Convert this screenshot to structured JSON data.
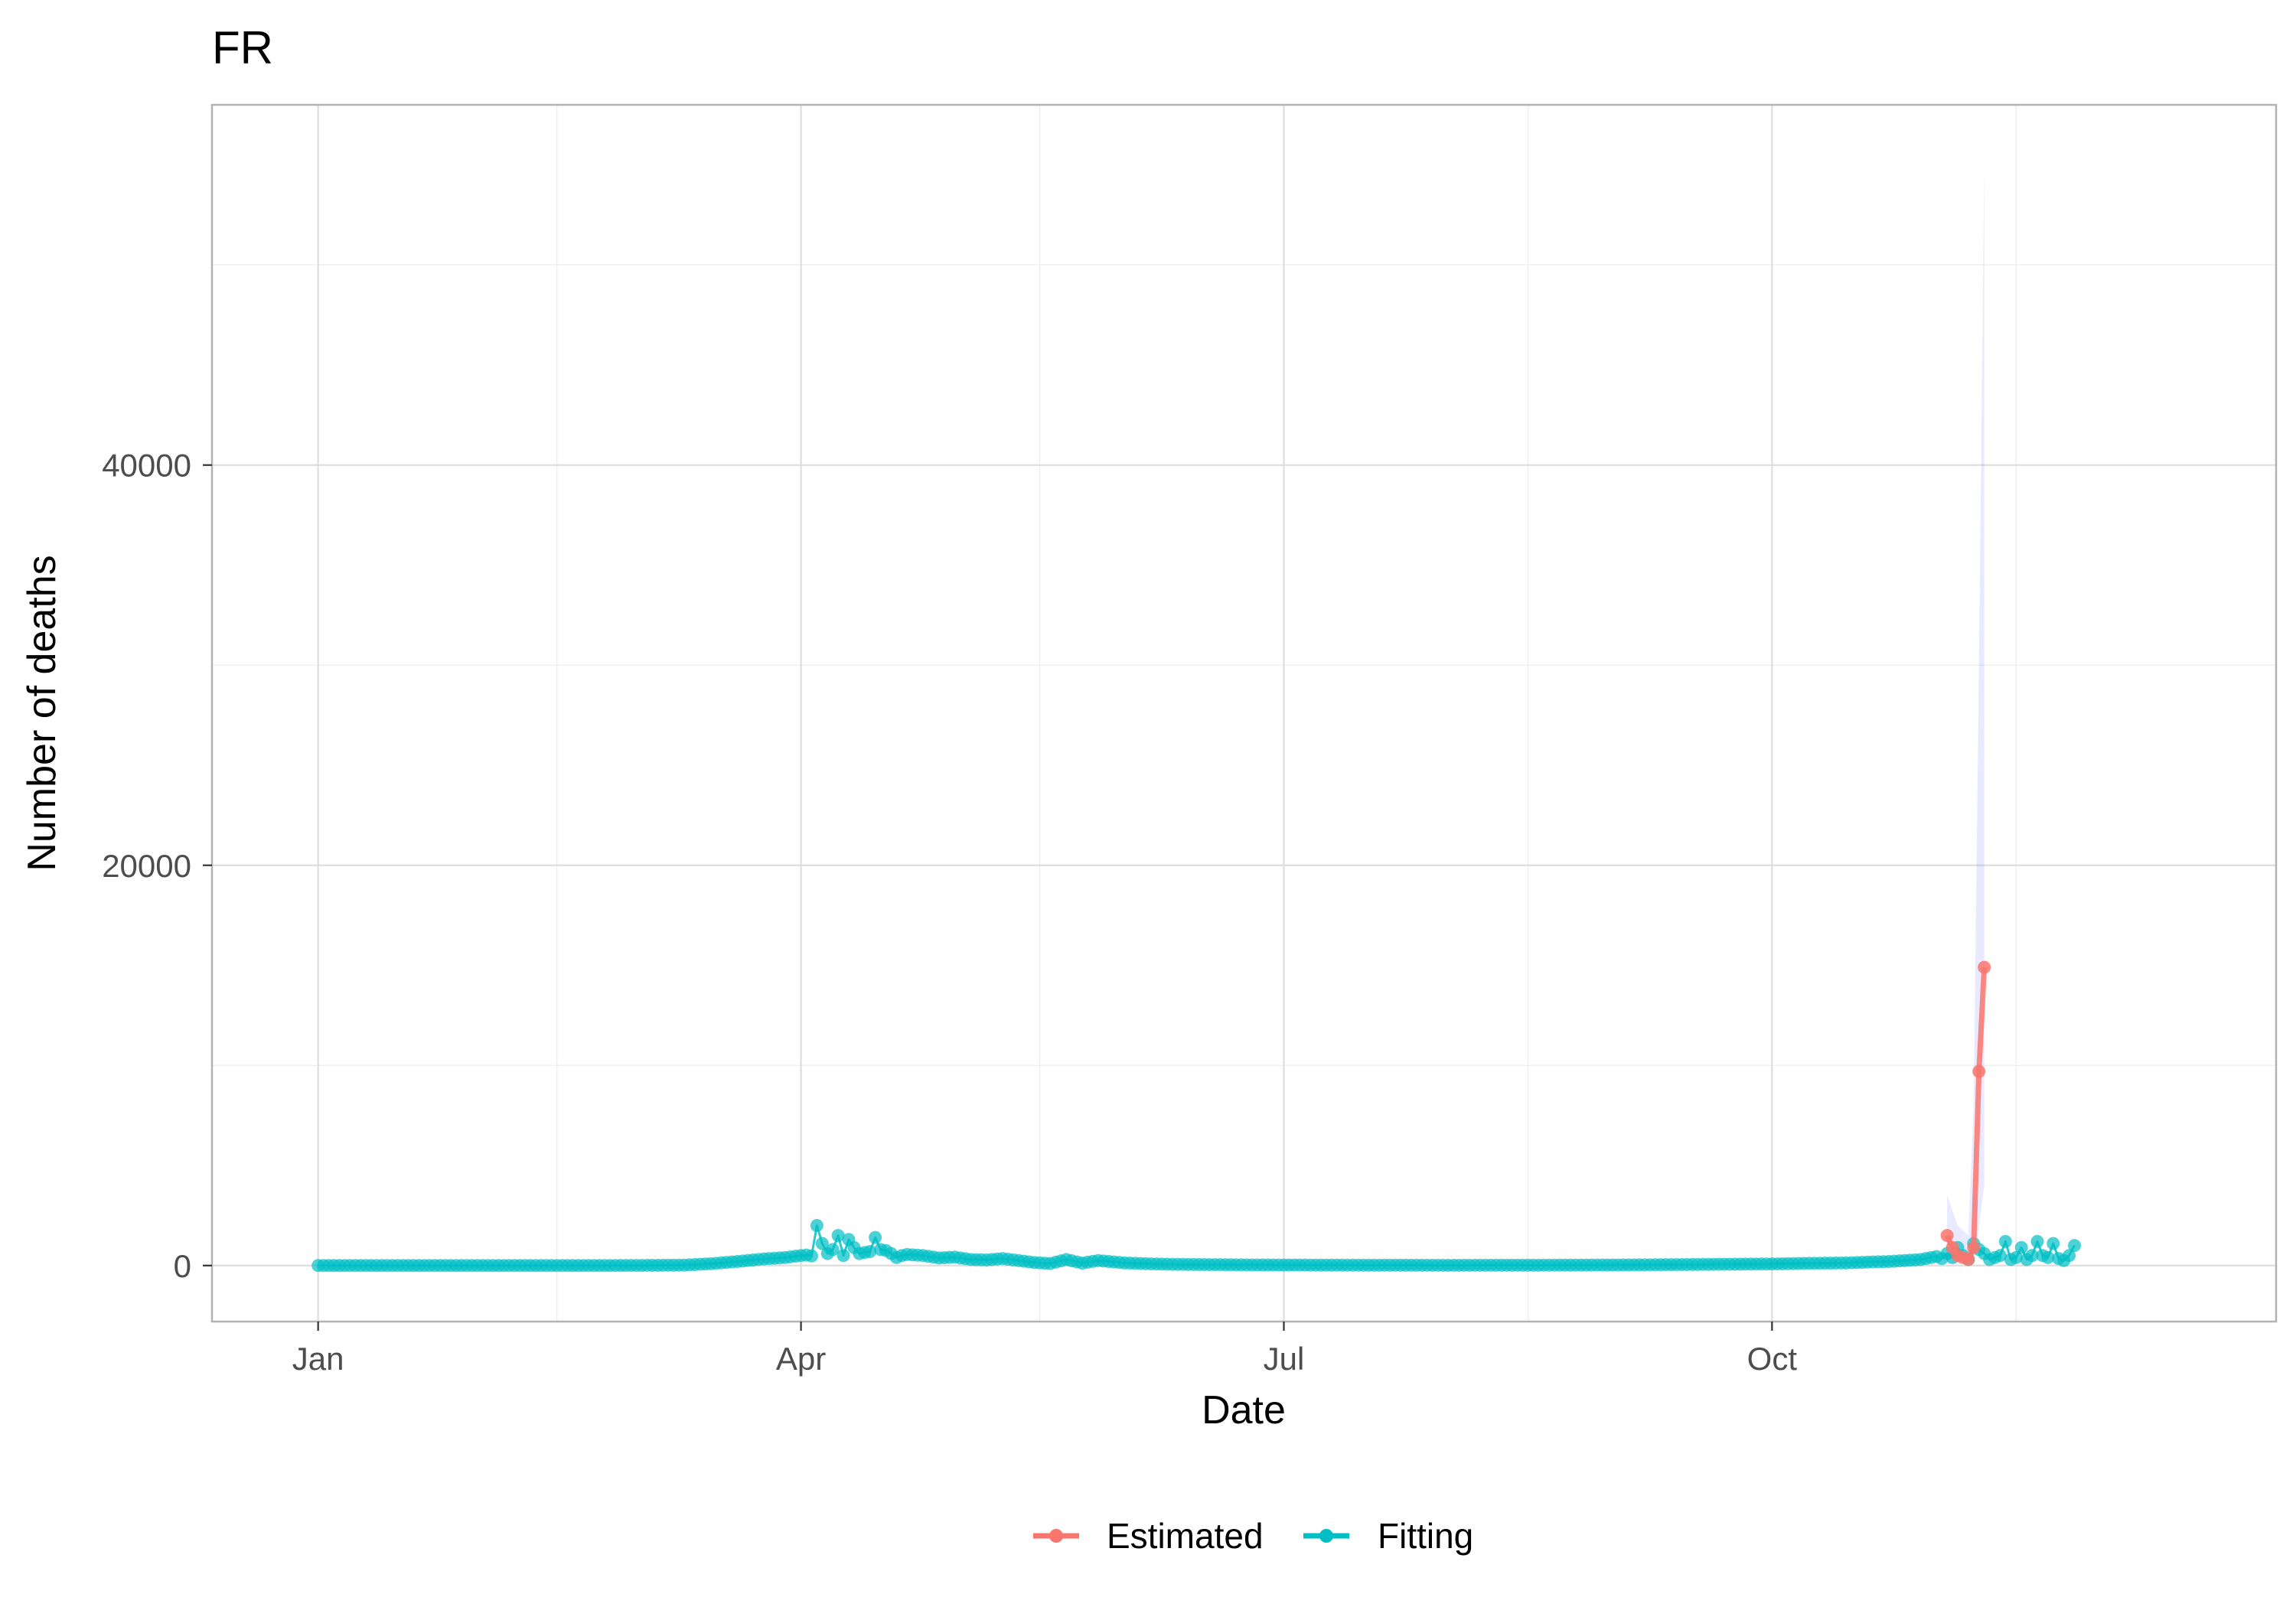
{
  "chart_data": {
    "type": "line",
    "title": "FR",
    "xlabel": "Date",
    "ylabel": "Number of  deaths",
    "x_ticks": [
      "Jan",
      "Apr",
      "Jul",
      "Oct"
    ],
    "x_tick_dates": [
      "2020-01-01",
      "2020-04-01",
      "2020-07-01",
      "2020-10-01"
    ],
    "xlim": [
      "2019-12-12",
      "2021-01-04"
    ],
    "y_ticks": [
      0,
      20000,
      40000
    ],
    "ylim": [
      -2800,
      58000
    ],
    "grid": true,
    "legend_position": "bottom",
    "series": [
      {
        "name": "Fitting",
        "color": "#00BFC4",
        "style": "line+points",
        "points": [
          [
            "2020-01-01",
            0
          ],
          [
            "2020-02-01",
            0
          ],
          [
            "2020-02-20",
            0
          ],
          [
            "2020-03-01",
            5
          ],
          [
            "2020-03-10",
            20
          ],
          [
            "2020-03-15",
            90
          ],
          [
            "2020-03-20",
            200
          ],
          [
            "2020-03-25",
            330
          ],
          [
            "2020-03-29",
            400
          ],
          [
            "2020-04-01",
            500
          ],
          [
            "2020-04-02",
            520
          ],
          [
            "2020-04-03",
            480
          ],
          [
            "2020-04-04",
            2000
          ],
          [
            "2020-04-05",
            1100
          ],
          [
            "2020-04-06",
            600
          ],
          [
            "2020-04-07",
            800
          ],
          [
            "2020-04-08",
            1500
          ],
          [
            "2020-04-09",
            500
          ],
          [
            "2020-04-10",
            1300
          ],
          [
            "2020-04-11",
            900
          ],
          [
            "2020-04-12",
            600
          ],
          [
            "2020-04-13",
            650
          ],
          [
            "2020-04-14",
            700
          ],
          [
            "2020-04-15",
            1400
          ],
          [
            "2020-04-16",
            800
          ],
          [
            "2020-04-17",
            750
          ],
          [
            "2020-04-18",
            600
          ],
          [
            "2020-04-19",
            400
          ],
          [
            "2020-04-20",
            500
          ],
          [
            "2020-04-21",
            550
          ],
          [
            "2020-04-24",
            500
          ],
          [
            "2020-04-27",
            380
          ],
          [
            "2020-04-30",
            420
          ],
          [
            "2020-05-03",
            300
          ],
          [
            "2020-05-06",
            280
          ],
          [
            "2020-05-09",
            350
          ],
          [
            "2020-05-12",
            250
          ],
          [
            "2020-05-15",
            150
          ],
          [
            "2020-05-18",
            100
          ],
          [
            "2020-05-21",
            300
          ],
          [
            "2020-05-24",
            120
          ],
          [
            "2020-05-27",
            250
          ],
          [
            "2020-06-01",
            130
          ],
          [
            "2020-06-05",
            90
          ],
          [
            "2020-06-10",
            60
          ],
          [
            "2020-06-15",
            50
          ],
          [
            "2020-06-20",
            40
          ],
          [
            "2020-06-25",
            30
          ],
          [
            "2020-07-01",
            25
          ],
          [
            "2020-07-10",
            20
          ],
          [
            "2020-07-20",
            15
          ],
          [
            "2020-08-01",
            12
          ],
          [
            "2020-08-15",
            15
          ],
          [
            "2020-09-01",
            25
          ],
          [
            "2020-09-10",
            40
          ],
          [
            "2020-09-20",
            60
          ],
          [
            "2020-10-01",
            80
          ],
          [
            "2020-10-08",
            110
          ],
          [
            "2020-10-15",
            130
          ],
          [
            "2020-10-20",
            180
          ],
          [
            "2020-10-23",
            200
          ],
          [
            "2020-10-26",
            250
          ],
          [
            "2020-10-29",
            300
          ],
          [
            "2020-11-01",
            450
          ],
          [
            "2020-11-02",
            350
          ],
          [
            "2020-11-03",
            600
          ],
          [
            "2020-11-04",
            400
          ],
          [
            "2020-11-05",
            900
          ],
          [
            "2020-11-06",
            500
          ],
          [
            "2020-11-07",
            300
          ],
          [
            "2020-11-08",
            1100
          ],
          [
            "2020-11-09",
            800
          ],
          [
            "2020-11-10",
            600
          ],
          [
            "2020-11-11",
            300
          ],
          [
            "2020-11-12",
            400
          ],
          [
            "2020-11-13",
            500
          ],
          [
            "2020-11-14",
            1200
          ],
          [
            "2020-11-15",
            300
          ],
          [
            "2020-11-16",
            400
          ],
          [
            "2020-11-17",
            900
          ],
          [
            "2020-11-18",
            300
          ],
          [
            "2020-11-19",
            500
          ],
          [
            "2020-11-20",
            1200
          ],
          [
            "2020-11-21",
            500
          ],
          [
            "2020-11-22",
            400
          ],
          [
            "2020-11-23",
            1100
          ],
          [
            "2020-11-24",
            350
          ],
          [
            "2020-11-25",
            250
          ],
          [
            "2020-11-26",
            500
          ],
          [
            "2020-11-27",
            1000
          ]
        ]
      },
      {
        "name": "Estimated",
        "color": "#F8766D",
        "style": "line+points",
        "points": [
          [
            "2020-11-03",
            1500
          ],
          [
            "2020-11-04",
            900
          ],
          [
            "2020-11-05",
            500
          ],
          [
            "2020-11-06",
            400
          ],
          [
            "2020-11-07",
            300
          ],
          [
            "2020-11-08",
            900
          ],
          [
            "2020-11-09",
            9700
          ],
          [
            "2020-11-10",
            14900
          ]
        ]
      }
    ],
    "ribbon": {
      "color": "#6666FF",
      "lower": [
        [
          "2020-11-03",
          100
        ],
        [
          "2020-11-05",
          100
        ],
        [
          "2020-11-07",
          100
        ],
        [
          "2020-11-08",
          200
        ],
        [
          "2020-11-09",
          2000
        ],
        [
          "2020-11-10",
          4000
        ]
      ],
      "upper": [
        [
          "2020-11-03",
          3500
        ],
        [
          "2020-11-05",
          2000
        ],
        [
          "2020-11-07",
          1500
        ],
        [
          "2020-11-08",
          8000
        ],
        [
          "2020-11-09",
          30000
        ],
        [
          "2020-11-10",
          55000
        ]
      ]
    }
  }
}
